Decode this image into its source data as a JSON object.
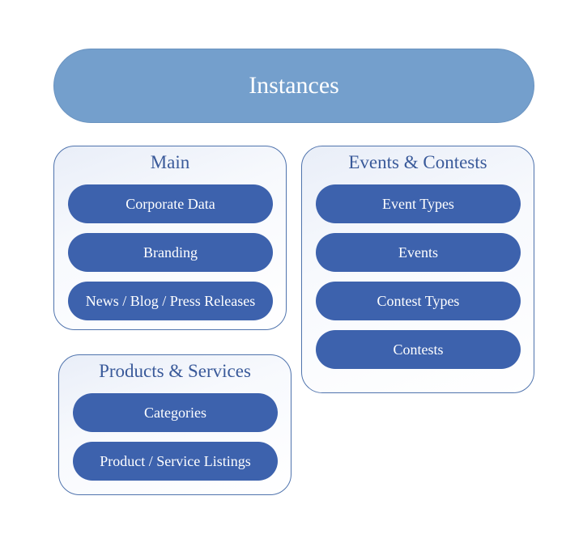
{
  "header": {
    "title": "Instances"
  },
  "groups": {
    "main": {
      "title": "Main",
      "items": [
        "Corporate Data",
        "Branding",
        "News / Blog / Press Releases"
      ]
    },
    "events": {
      "title": "Events & Contests",
      "items": [
        "Event Types",
        "Events",
        "Contest Types",
        "Contests"
      ]
    },
    "products": {
      "title": "Products & Services",
      "items": [
        "Categories",
        "Product / Service Listings"
      ]
    }
  },
  "colors": {
    "header_fill": "#749fcc",
    "pill_fill": "#3d62ad",
    "group_border": "#4f73ad",
    "group_title": "#3a5a9a"
  }
}
